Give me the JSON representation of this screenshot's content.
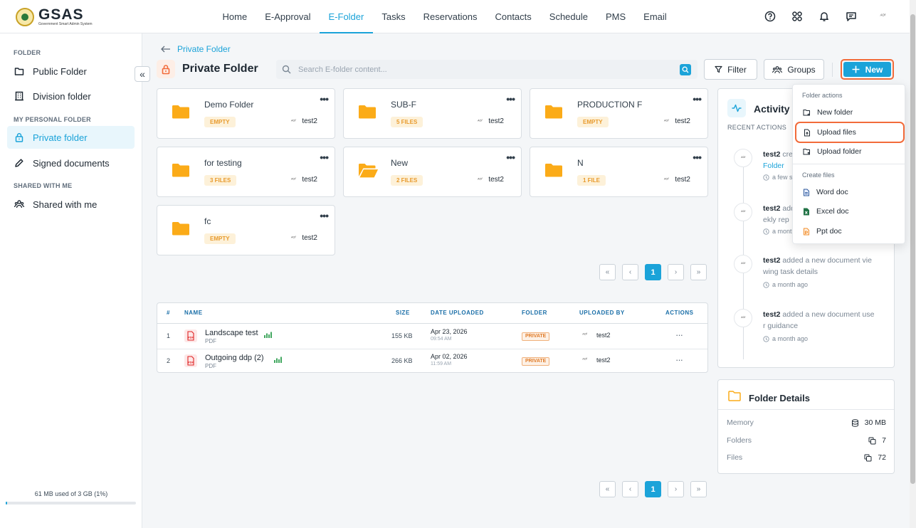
{
  "brand": {
    "title": "GSAS",
    "subtitle": "Government Smart Admin System"
  },
  "nav": [
    "Home",
    "E-Approval",
    "E-Folder",
    "Tasks",
    "Reservations",
    "Contacts",
    "Schedule",
    "PMS",
    "Email"
  ],
  "nav_active": "E-Folder",
  "user_avatar_text": "ᴬᴼᶠ",
  "sidebar": {
    "folder_section": "FOLDER",
    "public_folder": "Public Folder",
    "division_folder": "Division folder",
    "personal_section": "MY PERSONAL FOLDER",
    "private_folder": "Private folder",
    "signed_documents": "Signed documents",
    "shared_section": "SHARED WITH ME",
    "shared_with_me": "Shared with me",
    "storage_text": "61 MB used of 3 GB (1%)",
    "storage_fraction": 0.01
  },
  "breadcrumb": "Private Folder",
  "page_title": "Private Folder",
  "search": {
    "placeholder": "Search E-folder content..."
  },
  "buttons": {
    "filter": "Filter",
    "groups": "Groups",
    "new": "New"
  },
  "folders": [
    {
      "name": "Demo Folder",
      "badge": "EMPTY",
      "owner": "test2"
    },
    {
      "name": "SUB-F",
      "badge": "5 FILES",
      "owner": "test2"
    },
    {
      "name": "PRODUCTION F",
      "badge": "EMPTY",
      "owner": "test2"
    },
    {
      "name": "for testing",
      "badge": "3 FILES",
      "owner": "test2"
    },
    {
      "name": "New",
      "badge": "2 FILES",
      "owner": "test2"
    },
    {
      "name": "N",
      "badge": "1 FILE",
      "owner": "test2"
    },
    {
      "name": "fc",
      "badge": "EMPTY",
      "owner": "test2"
    }
  ],
  "pagination": {
    "current": "1"
  },
  "table": {
    "headers": {
      "num": "#",
      "name": "NAME",
      "size": "SIZE",
      "date": "DATE UPLOADED",
      "folder": "FOLDER",
      "uploaded_by": "UPLOADED BY",
      "actions": "ACTIONS"
    },
    "rows": [
      {
        "num": "1",
        "name": "Landscape test",
        "type": "PDF",
        "size": "155 KB",
        "date": "Apr 23, 2026",
        "time": "09:54 AM",
        "folder": "PRIVATE",
        "uploaded_by": "test2"
      },
      {
        "num": "2",
        "name": "Outgoing ddp (2)",
        "type": "PDF",
        "size": "266 KB",
        "date": "Apr 02, 2026",
        "time": "11:59 AM",
        "folder": "PRIVATE",
        "uploaded_by": "test2"
      }
    ]
  },
  "activity": {
    "title": "Activity H",
    "subtitle": "RECENT ACTIONS",
    "items": [
      {
        "user": "test2",
        "text": " cre",
        "link": "Folder",
        "time": "a few s"
      },
      {
        "user": "test2",
        "text": " add",
        "line2": "ekly rep",
        "time": "a mont"
      },
      {
        "user": "test2",
        "text": " added a new document vie",
        "line2": "wing task details",
        "time": "a month ago"
      },
      {
        "user": "test2",
        "text": " added a new document use",
        "line2": "r guidance",
        "time": "a month ago"
      }
    ]
  },
  "folder_details": {
    "title": "Folder Details",
    "memory_label": "Memory",
    "memory_value": "30 MB",
    "folders_label": "Folders",
    "folders_value": "7",
    "files_label": "Files",
    "files_value": "72"
  },
  "dropdown": {
    "folder_actions": "Folder actions",
    "new_folder": "New folder",
    "upload_files": "Upload files",
    "upload_folder": "Upload folder",
    "create_files": "Create files",
    "word_doc": "Word doc",
    "excel_doc": "Excel doc",
    "ppt_doc": "Ppt doc"
  },
  "colors": {
    "accent": "#1ba3d9",
    "highlight": "#f26b3a",
    "folder": "#fbab18"
  }
}
